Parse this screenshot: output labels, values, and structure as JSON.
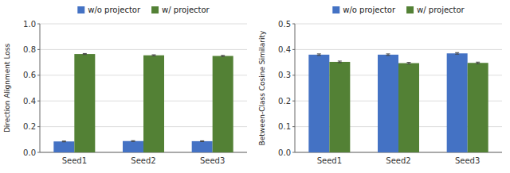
{
  "chart_data": [
    {
      "type": "bar",
      "y_label": "Direction Alignment Loss",
      "categories": [
        "Seed1",
        "Seed2",
        "Seed3"
      ],
      "series": [
        {
          "name": "w/o projector",
          "color": "#4472C4",
          "values": [
            0.085,
            0.088,
            0.087
          ],
          "errors": [
            0.003,
            0.003,
            0.003
          ]
        },
        {
          "name": "w/ projector",
          "color": "#538135",
          "values": [
            0.765,
            0.755,
            0.75
          ],
          "errors": [
            0.004,
            0.004,
            0.004
          ]
        }
      ],
      "ylim": [
        0,
        1.0
      ],
      "yticks": [
        {
          "value": 0,
          "label": "0.0"
        },
        0.2,
        0.4,
        0.6,
        0.8,
        {
          "value": 1.0,
          "label": "1.0"
        }
      ],
      "grid": true,
      "legend": "top"
    },
    {
      "type": "bar",
      "y_label": "Between-Class Cosine Similarity",
      "categories": [
        "Seed1",
        "Seed2",
        "Seed3"
      ],
      "series": [
        {
          "name": "w/o projector",
          "color": "#4472C4",
          "values": [
            0.38,
            0.38,
            0.385
          ],
          "errors": [
            0.003,
            0.003,
            0.003
          ]
        },
        {
          "name": "w/ projector",
          "color": "#538135",
          "values": [
            0.352,
            0.347,
            0.348
          ],
          "errors": [
            0.003,
            0.003,
            0.003
          ]
        }
      ],
      "ylim": [
        0,
        0.5
      ],
      "yticks": [
        {
          "value": 0,
          "label": "0.0"
        },
        0.1,
        0.2,
        0.3,
        0.4,
        0.5
      ],
      "grid": true,
      "legend": "top"
    }
  ]
}
